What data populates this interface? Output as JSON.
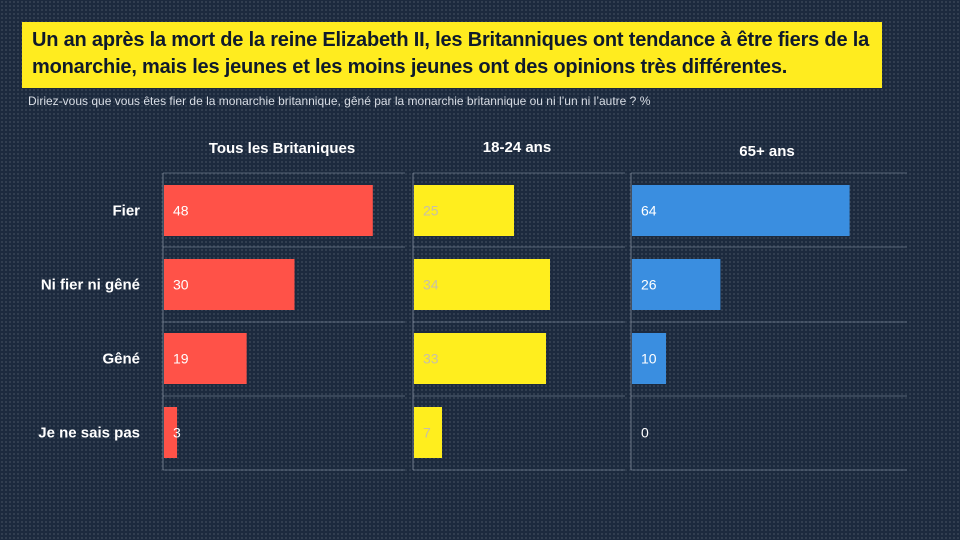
{
  "title": "Un an après la mort de la reine Elizabeth II, les Britanniques ont tendance à être fiers de la monarchie, mais les jeunes et les moins jeunes ont des opinions très différentes.",
  "subtitle": "Diriez-vous que vous êtes fier de la monarchie britannique, gêné par la monarchie britannique ou ni l’un ni l’autre ? %",
  "chart_data": {
    "type": "bar",
    "orientation": "horizontal",
    "categories": [
      "Fier",
      "Ni fier ni gêné",
      "Gêné",
      "Je ne sais pas"
    ],
    "xlim": [
      0,
      70
    ],
    "series": [
      {
        "name": "Tous les Britaniques",
        "color": "#ff5248",
        "values": [
          48,
          30,
          19,
          3
        ]
      },
      {
        "name": "18-24 ans",
        "color": "#ffee1e",
        "values": [
          25,
          34,
          33,
          7
        ]
      },
      {
        "name": "65+ ans",
        "color": "#3a8ee0",
        "values": [
          64,
          26,
          10,
          0
        ]
      }
    ]
  }
}
